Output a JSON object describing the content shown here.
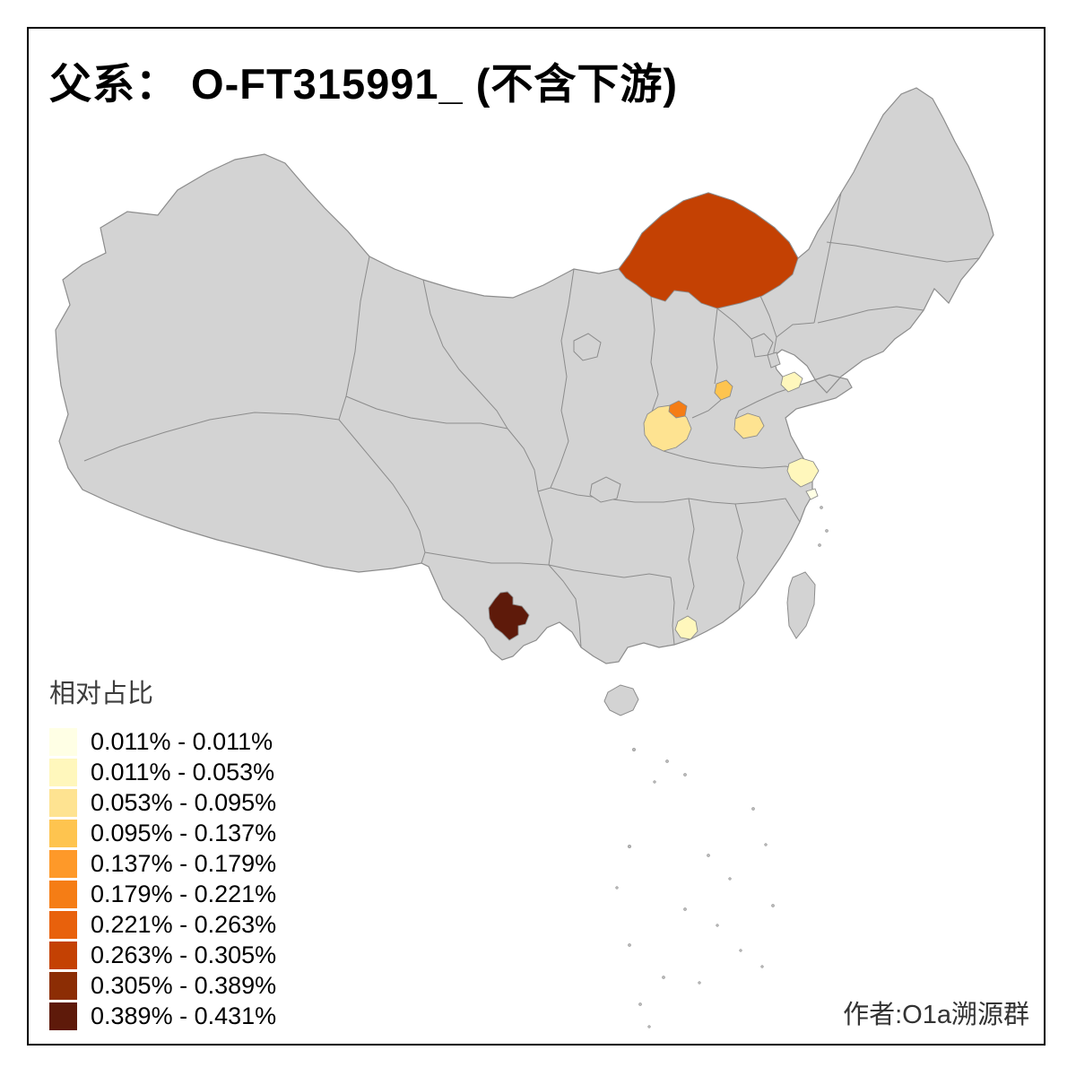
{
  "title": "父系： O-FT315991_ (不含下游)",
  "author": "作者:O1a溯源群",
  "legend": {
    "title": "相对占比",
    "items": [
      {
        "label": "0.011% - 0.011%",
        "color": "#FFFFE5"
      },
      {
        "label": "0.011% - 0.053%",
        "color": "#FFF7BC"
      },
      {
        "label": "0.053% - 0.095%",
        "color": "#FEE391"
      },
      {
        "label": "0.095% - 0.137%",
        "color": "#FEC44F"
      },
      {
        "label": "0.137% - 0.179%",
        "color": "#FE9929"
      },
      {
        "label": "0.179% - 0.221%",
        "color": "#F57D15"
      },
      {
        "label": "0.221% - 0.263%",
        "color": "#E8610C"
      },
      {
        "label": "0.263% - 0.305%",
        "color": "#C44103"
      },
      {
        "label": "0.305% - 0.389%",
        "color": "#8C2D04"
      },
      {
        "label": "0.389% - 0.431%",
        "color": "#5E1A0A"
      }
    ]
  },
  "map": {
    "land_color": "#D3D3D3",
    "border_color": "#8C8C8C",
    "background": "#FFFFFF",
    "regions": [
      {
        "id": "inner-mongolia",
        "bin": "0.263% - 0.305%",
        "color": "#C44103"
      },
      {
        "id": "yunnan-cluster",
        "bin": "0.389% - 0.431%",
        "color": "#5E1A0A"
      },
      {
        "id": "henan",
        "bin": "0.053% - 0.095%",
        "color": "#FEE391"
      },
      {
        "id": "henan-north",
        "bin": "0.179% - 0.221%",
        "color": "#F57D15"
      },
      {
        "id": "shanxi-south",
        "bin": "0.095% - 0.137%",
        "color": "#FEC44F"
      },
      {
        "id": "shandong-east",
        "bin": "0.011% - 0.053%",
        "color": "#FFF7BC"
      },
      {
        "id": "shandong-south",
        "bin": "0.053% - 0.095%",
        "color": "#FEE391"
      },
      {
        "id": "jiangsu",
        "bin": "0.011% - 0.053%",
        "color": "#FFF7BC"
      },
      {
        "id": "shanghai",
        "bin": "0.011% - 0.011%",
        "color": "#FFFFE5"
      },
      {
        "id": "guangdong-patch",
        "bin": "0.011% - 0.053%",
        "color": "#FFF7BC"
      }
    ]
  }
}
